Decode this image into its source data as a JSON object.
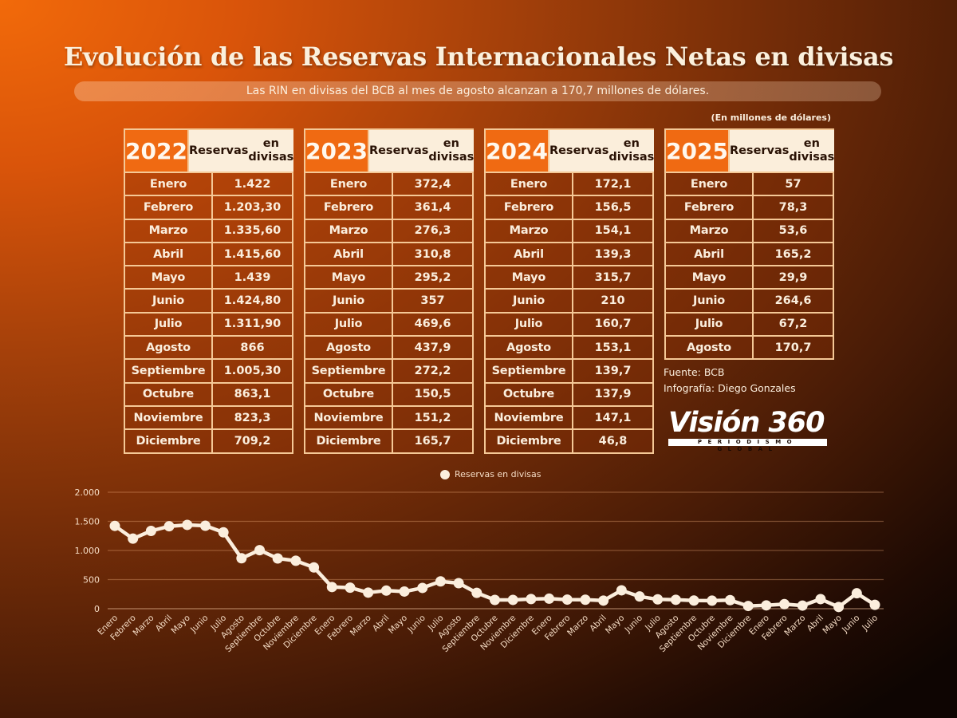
{
  "header": {
    "title": "Evolución de las Reservas Internacionales Netas en divisas",
    "subtitle": "Las RIN en divisas del BCB al mes de agosto alcanzan a 170,7 millones de dólares.",
    "unit_note": "(En millones de dólares)"
  },
  "tables": [
    {
      "year": "2022",
      "column_header": "Reservas en divisas",
      "rows": [
        {
          "month": "Enero",
          "value": "1.422"
        },
        {
          "month": "Febrero",
          "value": "1.203,30"
        },
        {
          "month": "Marzo",
          "value": "1.335,60"
        },
        {
          "month": "Abril",
          "value": "1.415,60"
        },
        {
          "month": "Mayo",
          "value": "1.439"
        },
        {
          "month": "Junio",
          "value": "1.424,80"
        },
        {
          "month": "Julio",
          "value": "1.311,90"
        },
        {
          "month": "Agosto",
          "value": "866"
        },
        {
          "month": "Septiembre",
          "value": "1.005,30"
        },
        {
          "month": "Octubre",
          "value": "863,1"
        },
        {
          "month": "Noviembre",
          "value": "823,3"
        },
        {
          "month": "Diciembre",
          "value": "709,2"
        }
      ]
    },
    {
      "year": "2023",
      "column_header": "Reservas en divisas",
      "rows": [
        {
          "month": "Enero",
          "value": "372,4"
        },
        {
          "month": "Febrero",
          "value": "361,4"
        },
        {
          "month": "Marzo",
          "value": "276,3"
        },
        {
          "month": "Abril",
          "value": "310,8"
        },
        {
          "month": "Mayo",
          "value": "295,2"
        },
        {
          "month": "Junio",
          "value": "357"
        },
        {
          "month": "Julio",
          "value": "469,6"
        },
        {
          "month": "Agosto",
          "value": "437,9"
        },
        {
          "month": "Septiembre",
          "value": "272,2"
        },
        {
          "month": "Octubre",
          "value": "150,5"
        },
        {
          "month": "Noviembre",
          "value": "151,2"
        },
        {
          "month": "Diciembre",
          "value": "165,7"
        }
      ]
    },
    {
      "year": "2024",
      "column_header": "Reservas en divisas",
      "rows": [
        {
          "month": "Enero",
          "value": "172,1"
        },
        {
          "month": "Febrero",
          "value": "156,5"
        },
        {
          "month": "Marzo",
          "value": "154,1"
        },
        {
          "month": "Abril",
          "value": "139,3"
        },
        {
          "month": "Mayo",
          "value": "315,7"
        },
        {
          "month": "Junio",
          "value": "210"
        },
        {
          "month": "Julio",
          "value": "160,7"
        },
        {
          "month": "Agosto",
          "value": "153,1"
        },
        {
          "month": "Septiembre",
          "value": "139,7"
        },
        {
          "month": "Octubre",
          "value": "137,9"
        },
        {
          "month": "Noviembre",
          "value": "147,1"
        },
        {
          "month": "Diciembre",
          "value": "46,8"
        }
      ]
    },
    {
      "year": "2025",
      "column_header": "Reservas en divisas",
      "rows": [
        {
          "month": "Enero",
          "value": "57"
        },
        {
          "month": "Febrero",
          "value": "78,3"
        },
        {
          "month": "Marzo",
          "value": "53,6"
        },
        {
          "month": "Abril",
          "value": "165,2"
        },
        {
          "month": "Mayo",
          "value": "29,9"
        },
        {
          "month": "Junio",
          "value": "264,6"
        },
        {
          "month": "Julio",
          "value": "67,2"
        },
        {
          "month": "Agosto",
          "value": "170,7"
        }
      ]
    }
  ],
  "credits": {
    "source": "Fuente: BCB",
    "infographic": "Infografía: Diego Gonzales"
  },
  "logo": {
    "name": "Visión 360",
    "tagline": "PERIODISMO GLOBAL"
  },
  "colors": {
    "accent_orange": "#f06a12",
    "line_cream": "#fbeedd",
    "table_border": "#f5c896"
  },
  "chart_data": {
    "type": "line",
    "title": "",
    "xlabel": "",
    "ylabel": "",
    "legend": "Reservas en divisas",
    "legend_position": "top-center",
    "ylim": [
      0,
      2000
    ],
    "yticks": [
      0,
      500,
      1000,
      1500,
      2000
    ],
    "ytick_labels": [
      "0",
      "500",
      "1.000",
      "1.500",
      "2.000"
    ],
    "grid": true,
    "categories": [
      "Enero",
      "Febrero",
      "Marzo",
      "Abril",
      "Mayo",
      "Junio",
      "Julio",
      "Agosto",
      "Septiembre",
      "Octubre",
      "Noviembre",
      "Diciembre",
      "Enero",
      "Febrero",
      "Marzo",
      "Abril",
      "Mayo",
      "Junio",
      "Julio",
      "Agosto",
      "Septiembre",
      "Octubre",
      "Noviembre",
      "Diciembre",
      "Enero",
      "Febrero",
      "Marzo",
      "Abril",
      "Mayo",
      "Junio",
      "Julio",
      "Agosto",
      "Septiembre",
      "Octubre",
      "Noviembre",
      "Diciembre",
      "Enero",
      "Febrero",
      "Marzo",
      "Abril",
      "Mayo",
      "Junio",
      "Julio"
    ],
    "series": [
      {
        "name": "Reservas en divisas",
        "values": [
          1422,
          1203.3,
          1335.6,
          1415.6,
          1439,
          1424.8,
          1311.9,
          866,
          1005.3,
          863.1,
          823.3,
          709.2,
          372.4,
          361.4,
          276.3,
          310.8,
          295.2,
          357,
          469.6,
          437.9,
          272.2,
          150.5,
          151.2,
          165.7,
          172.1,
          156.5,
          154.1,
          139.3,
          315.7,
          210,
          160.7,
          153.1,
          139.7,
          137.9,
          147.1,
          46.8,
          57,
          78.3,
          53.6,
          165.2,
          29.9,
          264.6,
          67.2
        ]
      }
    ]
  }
}
